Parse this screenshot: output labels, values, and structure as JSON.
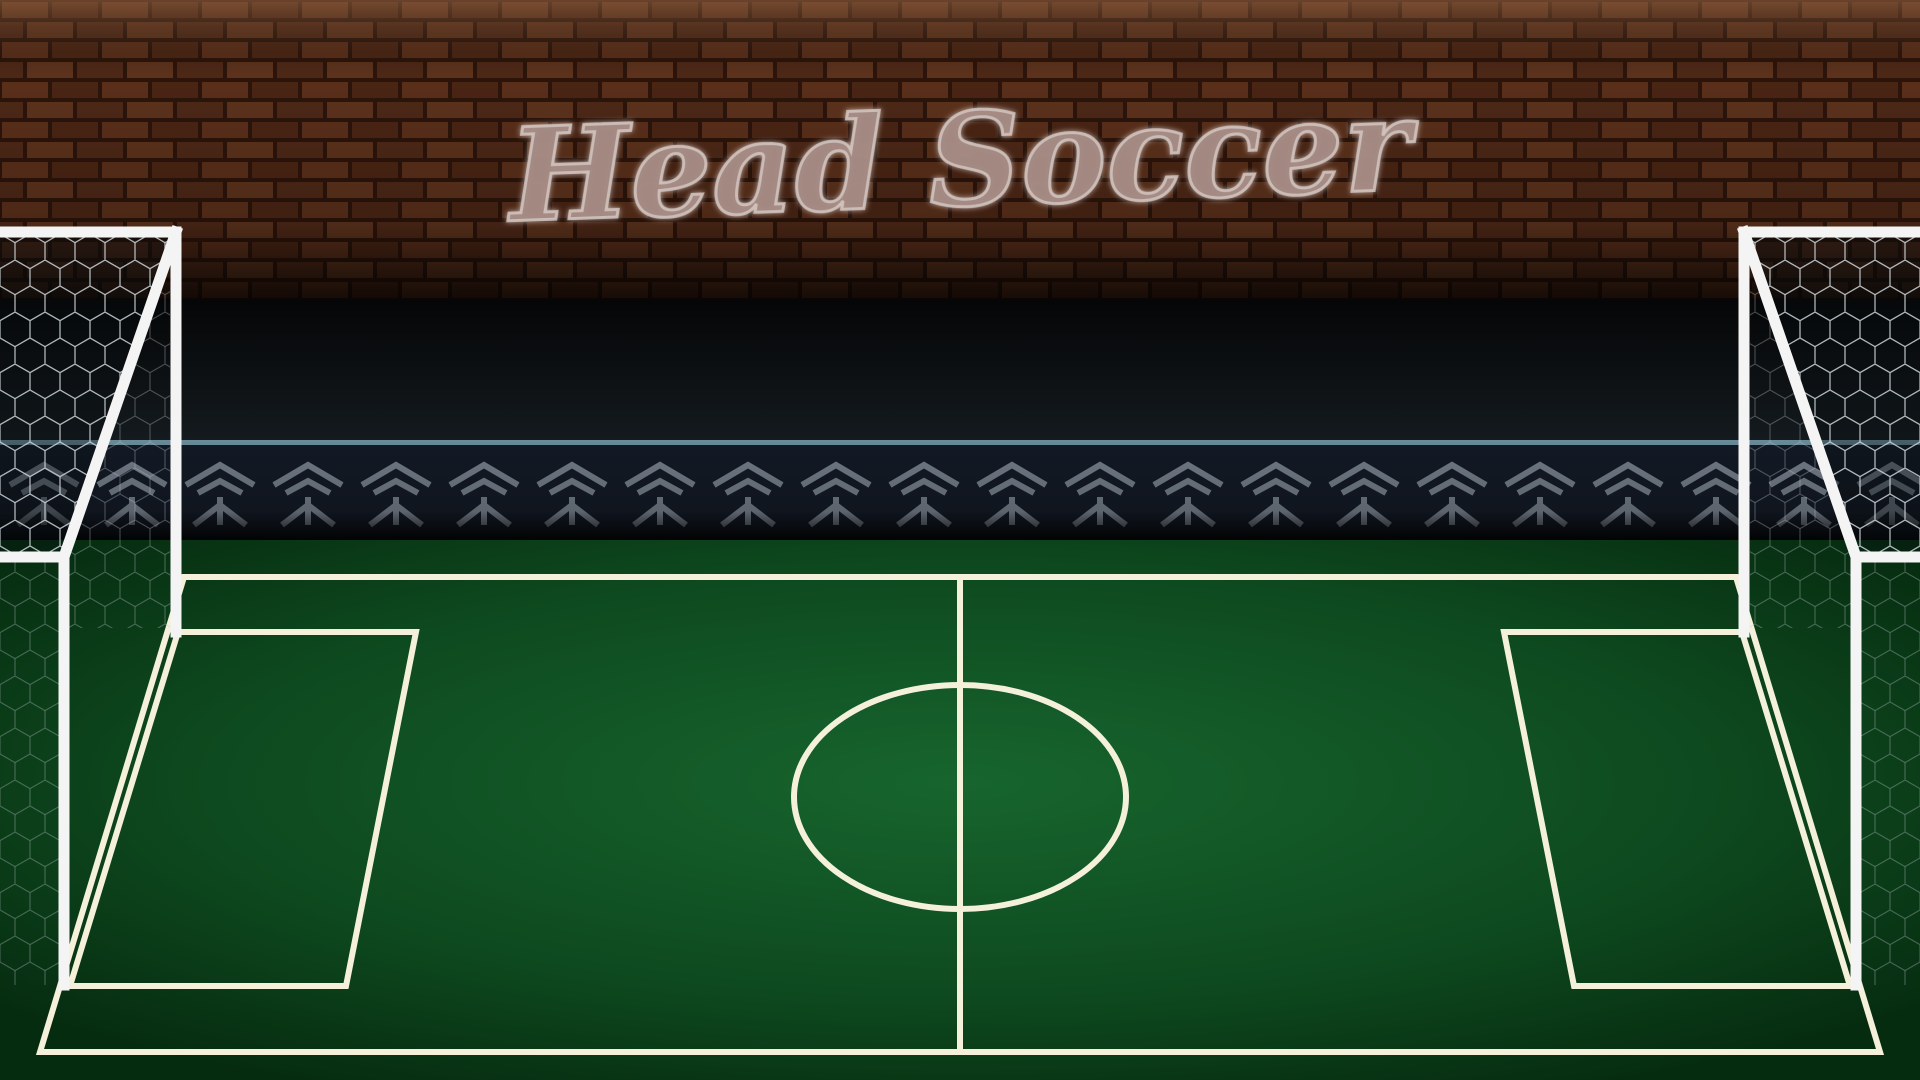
{
  "game": {
    "title": "Head Soccer"
  },
  "colors": {
    "brick_mortar": "#2c140a",
    "brick_light": "#6b3a22",
    "brick_dark": "#3e1e10",
    "void": "#0c1013",
    "rail": "#7ea8b8",
    "ad_board": "#1a2230",
    "pitch_center": "#17622d",
    "pitch_edge": "#073512",
    "line": "#f4f0da",
    "goal_post": "#f4f4f4",
    "net": "#c9d3d9",
    "title_fill": "#a58b84",
    "title_stroke": "#d8cbc6"
  }
}
